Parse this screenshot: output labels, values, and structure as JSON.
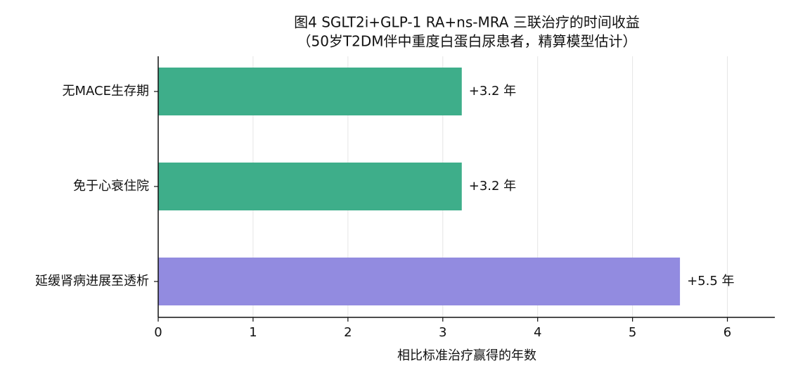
{
  "chart_data": {
    "type": "barh",
    "title": "图4  SGLT2i+GLP-1 RA+ns-MRA 三联治疗的时间收益",
    "subtitle": "（50岁T2DM伴中重度白蛋白尿患者，精算模型估计）",
    "xlabel": "相比标准治疗赢得的年数",
    "categories": [
      "无MACE生存期",
      "免于心衰住院",
      "延缓肾病进展至透析"
    ],
    "values": [
      3.2,
      3.2,
      5.5
    ],
    "value_labels": [
      "+3.2 年",
      "+3.2 年",
      "+5.5 年"
    ],
    "colors": [
      "#3eae8a",
      "#3eae8a",
      "#928be0"
    ],
    "xlim": [
      0,
      6.5
    ],
    "xticks": [
      0,
      1,
      2,
      3,
      4,
      5,
      6
    ],
    "grid": true
  }
}
